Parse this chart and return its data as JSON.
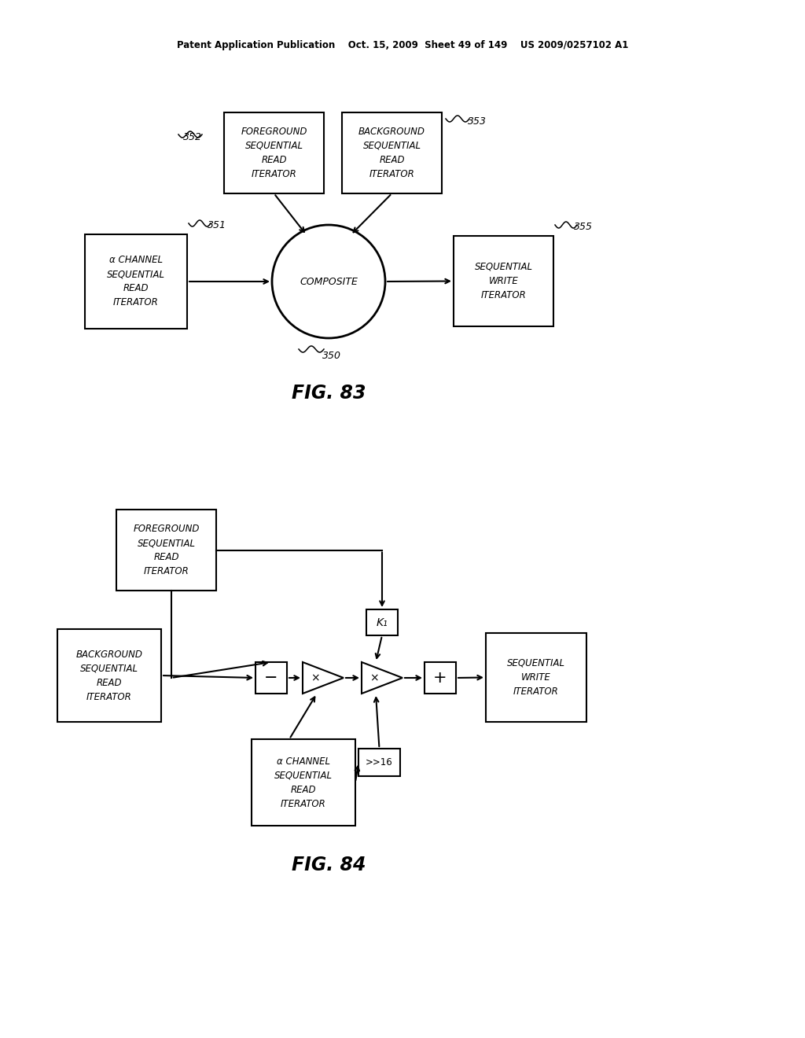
{
  "bg_color": "#ffffff",
  "header_text": "Patent Application Publication    Oct. 15, 2009  Sheet 49 of 149    US 2009/0257102 A1",
  "fig83_title": "FIG. 83",
  "fig84_title": "FIG. 84",
  "font_color": "#000000"
}
